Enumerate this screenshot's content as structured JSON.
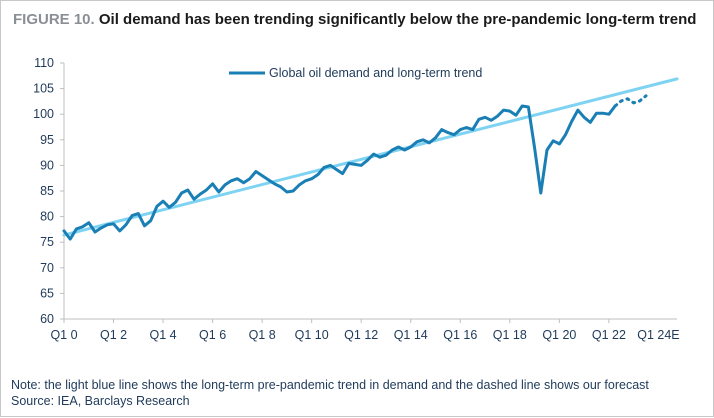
{
  "chart_data": {
    "type": "line",
    "figure_label": "FIGURE 10.",
    "title": "Oil demand has been trending significantly below the pre-pandemic long-term trend",
    "note": "Note: the light blue line shows the long-term pre-pandemic trend in demand and the dashed line shows our forecast",
    "source": "Source: IEA, Barclays Research",
    "xlabel": "",
    "ylabel": "",
    "ylim": [
      60,
      110
    ],
    "yticks": [
      60,
      65,
      70,
      75,
      80,
      85,
      90,
      95,
      100,
      105,
      110
    ],
    "x_range": [
      "Q1 00",
      "Q4 24"
    ],
    "x_tick_labels": [
      "Q1 0",
      "Q1 2",
      "Q1 4",
      "Q1 6",
      "Q1 8",
      "Q1 10",
      "Q1 12",
      "Q1 14",
      "Q1 16",
      "Q1 18",
      "Q1 20",
      "Q1 22",
      "Q1 24E"
    ],
    "legend": {
      "label": "Global oil demand and long-term trend",
      "placement": "top-center"
    },
    "grid": false,
    "colors": {
      "demand": "#1a7fb5",
      "trend": "#7fd3f2",
      "axis": "#bfbfbf",
      "text": "#1f3a5a"
    },
    "series": [
      {
        "name": "Global oil demand and long-term trend",
        "style": "solid",
        "color": "#1a7fb5",
        "values": [
          77.2,
          75.6,
          77.6,
          78.0,
          78.8,
          77.0,
          77.8,
          78.4,
          78.6,
          77.2,
          78.4,
          80.2,
          80.6,
          78.2,
          79.2,
          82.0,
          83.0,
          81.8,
          82.8,
          84.6,
          85.2,
          83.4,
          84.4,
          85.2,
          86.4,
          84.8,
          86.2,
          87.0,
          87.4,
          86.6,
          87.4,
          88.8,
          88.0,
          87.2,
          86.4,
          85.8,
          84.8,
          85.0,
          86.2,
          87.0,
          87.4,
          88.2,
          89.6,
          90.0,
          89.2,
          88.4,
          90.4,
          90.2,
          90.0,
          91.0,
          92.2,
          91.6,
          92.0,
          93.0,
          93.6,
          93.0,
          93.6,
          94.6,
          95.0,
          94.4,
          95.4,
          97.0,
          96.4,
          96.0,
          97.0,
          97.4,
          97.0,
          99.0,
          99.4,
          98.8,
          99.6,
          100.8,
          100.6,
          99.8,
          101.6,
          101.4,
          93.4,
          84.6,
          93.0,
          94.8,
          94.2,
          96.0,
          98.6,
          100.8,
          99.4,
          98.4,
          100.2,
          100.2,
          100.0,
          101.6
        ],
        "start": "Q1 00",
        "end": "Q2 22"
      },
      {
        "name": "Forecast",
        "style": "dotted",
        "color": "#1a7fb5",
        "values": [
          101.6,
          102.6,
          103.0,
          102.2,
          102.6,
          103.6
        ],
        "start": "Q2 22",
        "end": "Q3 23"
      },
      {
        "name": "Long-term trend",
        "style": "solid",
        "color": "#7fd3f2",
        "points": [
          [
            "Q1 00",
            76.4
          ],
          [
            "Q4 24",
            106.9
          ]
        ]
      }
    ]
  }
}
